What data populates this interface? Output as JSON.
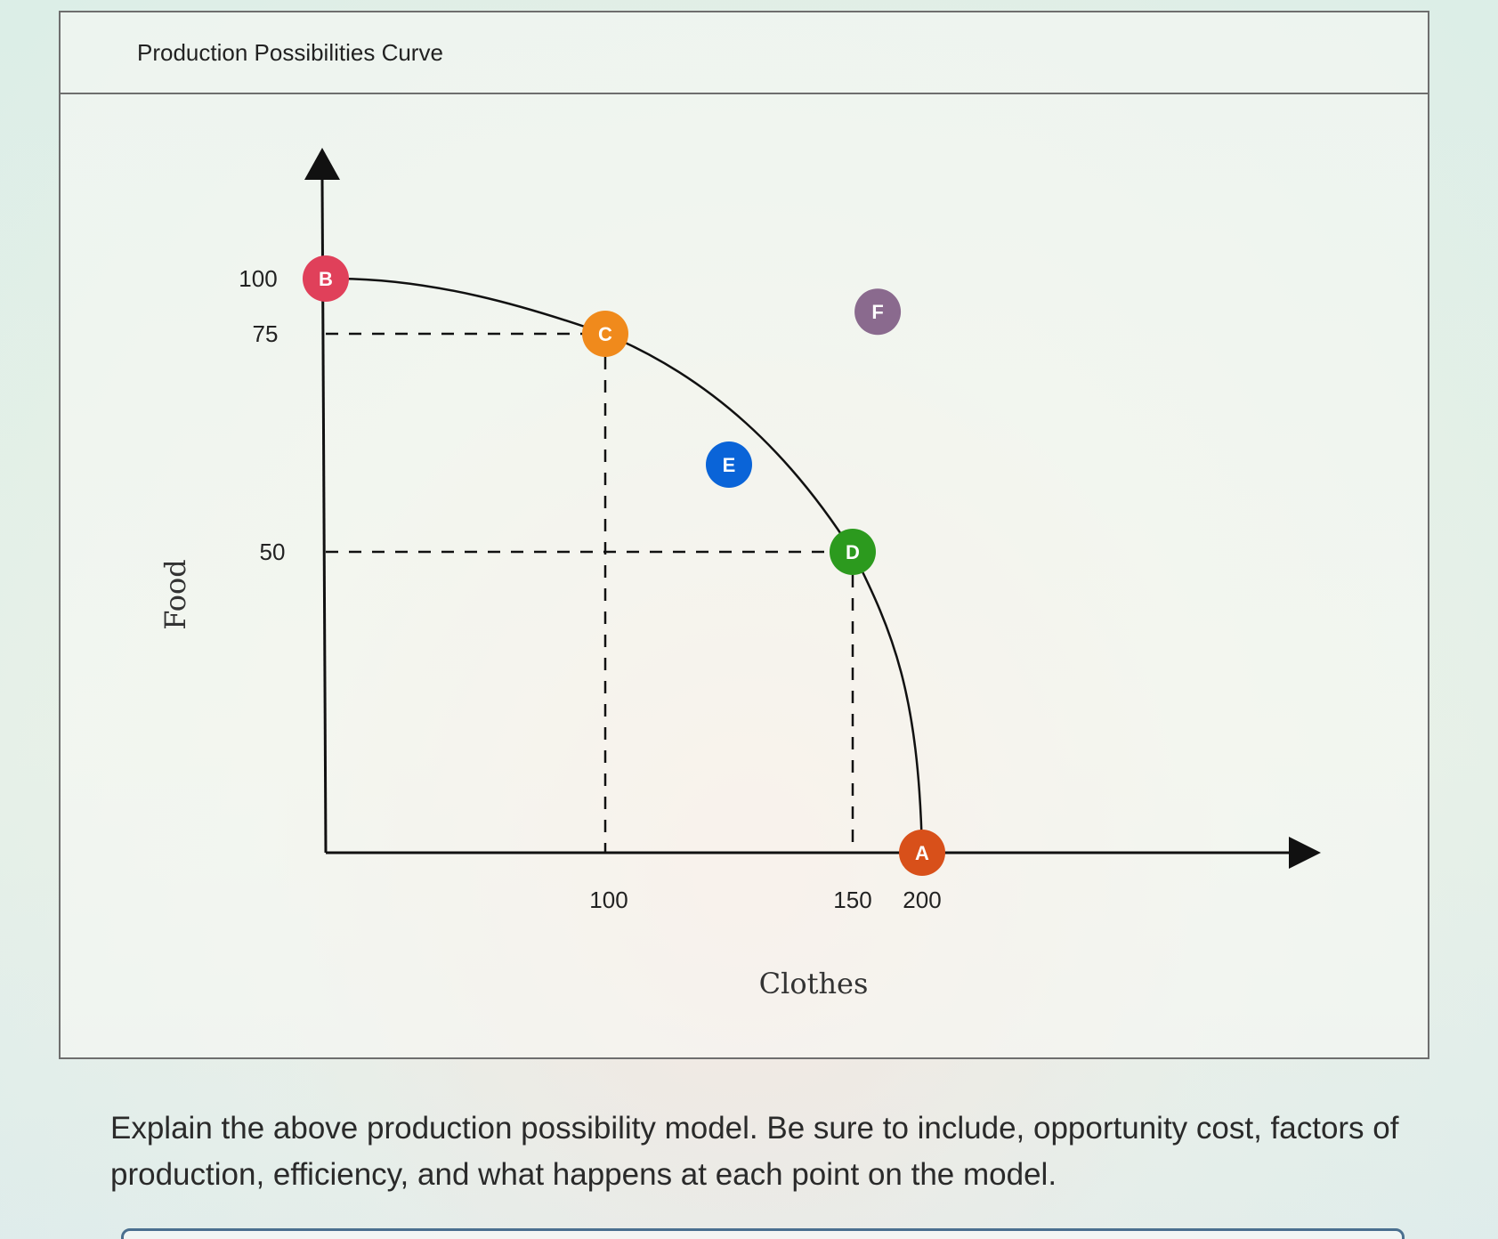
{
  "card": {
    "title": "Production Possibilities Curve"
  },
  "chart_data": {
    "type": "line",
    "xlabel": "Clothes",
    "ylabel": "Food",
    "x_ticks": [
      "100",
      "150",
      "200"
    ],
    "y_ticks": [
      "100",
      "75",
      "50"
    ],
    "curve": [
      {
        "x": 0,
        "y": 100
      },
      {
        "x": 100,
        "y": 75
      },
      {
        "x": 150,
        "y": 50
      },
      {
        "x": 200,
        "y": 0
      }
    ],
    "points": [
      {
        "label": "B",
        "x": 0,
        "y": 100,
        "color": "#e0405a"
      },
      {
        "label": "C",
        "x": 100,
        "y": 75,
        "color": "#f08a1c"
      },
      {
        "label": "F",
        "x": 168,
        "y": 85,
        "color": "#8a6a8e"
      },
      {
        "label": "E",
        "x": 125,
        "y": 60,
        "color": "#0a64d8"
      },
      {
        "label": "D",
        "x": 150,
        "y": 50,
        "color": "#2c9a1e"
      },
      {
        "label": "A",
        "x": 200,
        "y": 0,
        "color": "#d8501a"
      }
    ],
    "dashed_guides": [
      {
        "from": {
          "x": 0,
          "y": 75
        },
        "to": {
          "x": 100,
          "y": 75
        }
      },
      {
        "from": {
          "x": 100,
          "y": 75
        },
        "to": {
          "x": 100,
          "y": 0
        }
      },
      {
        "from": {
          "x": 0,
          "y": 50
        },
        "to": {
          "x": 150,
          "y": 50
        }
      },
      {
        "from": {
          "x": 150,
          "y": 50
        },
        "to": {
          "x": 150,
          "y": 0
        }
      }
    ]
  },
  "question": {
    "text": "Explain the above production possibility model.  Be sure to include, opportunity cost, factors of production, efficiency, and what happens at each point on the model."
  }
}
